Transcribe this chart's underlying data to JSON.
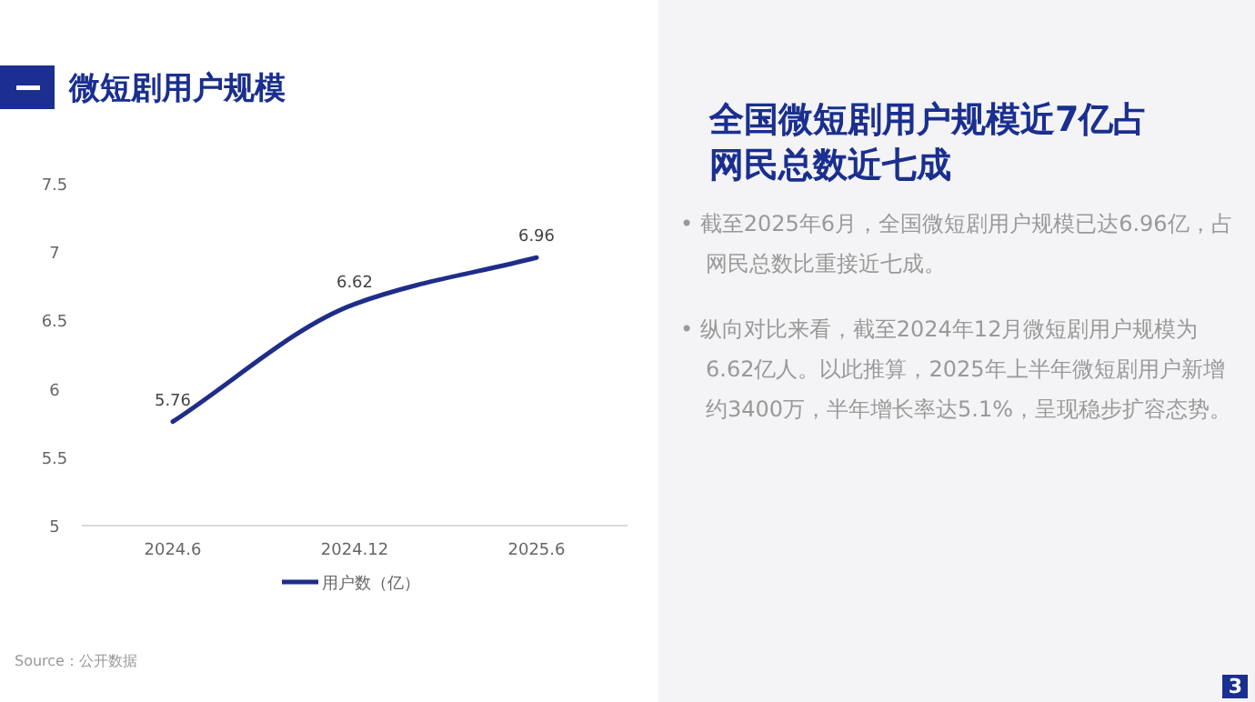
{
  "chart_data": [
    {
      "type": "line",
      "title": "微短剧用户规模",
      "categories": [
        "2024.6",
        "2024.12",
        "2025.6"
      ],
      "series": [
        {
          "name": "用户数（亿）",
          "color": "#1f2d8a",
          "values": [
            5.76,
            6.62,
            6.96
          ]
        }
      ],
      "ylim": [
        5,
        7.5
      ],
      "yticks": [
        5,
        5.5,
        6,
        6.5,
        7,
        7.5
      ],
      "data_labels": true,
      "legend": "bottom",
      "grid": false,
      "marker": "none",
      "line_style": "solid",
      "annotations": [
        "Source：公开数据"
      ]
    },
    {
      "type": "other",
      "title": "全国微短剧用户规模近7亿占网民总数近七成",
      "annotations": [
        "• 截至2025年6月，全国微短剧用户规模已达6.96亿，占网民总数比重接近七成。",
        "• 纵向对比来看，截至2024年12月微短剧用户规模为6.62亿人。以此推算，2025年上半年微短剧用户新增约3400万，半年增长率达5.1%，呈现稳步扩容态势。",
        "3"
      ]
    }
  ]
}
